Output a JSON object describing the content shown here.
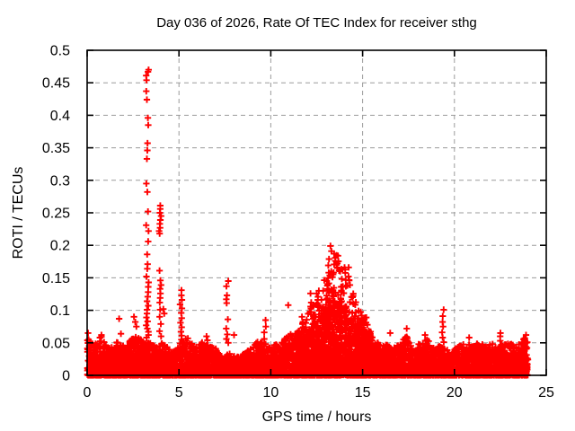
{
  "chart_data": {
    "type": "scatter",
    "title": "Day 036 of 2026, Rate Of TEC Index for receiver sthg",
    "xlabel": "GPS time / hours",
    "ylabel": "ROTI / TECUs",
    "xlim": [
      0,
      25
    ],
    "ylim": [
      0,
      0.5
    ],
    "xticks": [
      0,
      5,
      10,
      15,
      20,
      25
    ],
    "yticks": [
      0,
      0.05,
      0.1,
      0.15,
      0.2,
      0.25,
      0.3,
      0.35,
      0.4,
      0.45,
      0.5
    ],
    "xtick_labels": [
      "0",
      "5",
      "10",
      "15",
      "20",
      "25"
    ],
    "ytick_labels": [
      "0",
      "0.05",
      "0.1",
      "0.15",
      "0.2",
      "0.25",
      "0.3",
      "0.35",
      "0.4",
      "0.45",
      "0.5"
    ],
    "grid": true,
    "grid_style": "dashed",
    "legend": "none",
    "marker": "plus",
    "marker_color": "#ff0000",
    "grid_color": "#9b9b9b",
    "border_color": "#000000",
    "background": "#ffffff",
    "data_hours_range": [
      0,
      24
    ],
    "seed": 20260136,
    "dense_band": {
      "description": "continuous noise carpet of + markers from ROTI 0 up to local envelope",
      "n_core_points": 5200,
      "n_spread_points": 1500,
      "envelope": [
        [
          0,
          0.062
        ],
        [
          0.35,
          0.046
        ],
        [
          0.75,
          0.062
        ],
        [
          1.1,
          0.042
        ],
        [
          1.45,
          0.05
        ],
        [
          1.75,
          0.052
        ],
        [
          2.1,
          0.042
        ],
        [
          2.45,
          0.058
        ],
        [
          2.7,
          0.062
        ],
        [
          2.9,
          0.058
        ],
        [
          3.1,
          0.05
        ],
        [
          3.45,
          0.05
        ],
        [
          3.7,
          0.045
        ],
        [
          4.1,
          0.05
        ],
        [
          4.45,
          0.042
        ],
        [
          4.8,
          0.038
        ],
        [
          5.1,
          0.048
        ],
        [
          5.45,
          0.06
        ],
        [
          5.85,
          0.042
        ],
        [
          6.25,
          0.052
        ],
        [
          6.6,
          0.045
        ],
        [
          7.0,
          0.042
        ],
        [
          7.35,
          0.028
        ],
        [
          7.75,
          0.034
        ],
        [
          8.15,
          0.028
        ],
        [
          8.55,
          0.035
        ],
        [
          8.95,
          0.042
        ],
        [
          9.35,
          0.056
        ],
        [
          9.75,
          0.042
        ],
        [
          10.15,
          0.046
        ],
        [
          10.55,
          0.05
        ],
        [
          10.95,
          0.062
        ],
        [
          11.35,
          0.066
        ],
        [
          11.75,
          0.076
        ],
        [
          12.15,
          0.07
        ],
        [
          12.55,
          0.082
        ],
        [
          12.95,
          0.1
        ],
        [
          13.35,
          0.13
        ],
        [
          13.75,
          0.115
        ],
        [
          14.15,
          0.1
        ],
        [
          14.55,
          0.082
        ],
        [
          14.95,
          0.066
        ],
        [
          15.35,
          0.07
        ],
        [
          15.75,
          0.05
        ],
        [
          16.15,
          0.055
        ],
        [
          16.55,
          0.042
        ],
        [
          16.95,
          0.046
        ],
        [
          17.35,
          0.062
        ],
        [
          17.75,
          0.042
        ],
        [
          18.15,
          0.05
        ],
        [
          18.55,
          0.056
        ],
        [
          18.95,
          0.04
        ],
        [
          19.35,
          0.05
        ],
        [
          19.75,
          0.036
        ],
        [
          20.15,
          0.046
        ],
        [
          20.55,
          0.05
        ],
        [
          20.95,
          0.046
        ],
        [
          21.35,
          0.05
        ],
        [
          21.75,
          0.046
        ],
        [
          22.15,
          0.05
        ],
        [
          22.55,
          0.048
        ],
        [
          22.95,
          0.05
        ],
        [
          23.35,
          0.046
        ],
        [
          23.7,
          0.055
        ],
        [
          24,
          0.06
        ]
      ]
    },
    "mound": {
      "description": "broad elevated scatter region 11.4h-15.5h peaking near 0.2 TECU",
      "n_points": 650,
      "envelope": [
        [
          11.4,
          0.07
        ],
        [
          11.9,
          0.095
        ],
        [
          12.4,
          0.115
        ],
        [
          12.9,
          0.15
        ],
        [
          13.2,
          0.185
        ],
        [
          13.45,
          0.2
        ],
        [
          13.7,
          0.185
        ],
        [
          14.0,
          0.17
        ],
        [
          14.3,
          0.155
        ],
        [
          14.6,
          0.115
        ],
        [
          14.9,
          0.1
        ],
        [
          15.2,
          0.088
        ],
        [
          15.5,
          0.07
        ]
      ]
    },
    "spike_columns": [
      {
        "x": 3.28,
        "values": [
          0.47,
          0.467,
          0.461,
          0.454,
          0.437,
          0.424,
          0.396,
          0.385,
          0.357,
          0.346,
          0.333,
          0.295,
          0.282,
          0.252,
          0.231,
          0.222,
          0.206,
          0.186,
          0.171,
          0.164,
          0.152,
          0.143,
          0.136,
          0.128,
          0.121,
          0.114,
          0.107,
          0.101,
          0.095,
          0.089,
          0.083,
          0.077,
          0.072,
          0.067,
          0.062,
          0.058
        ]
      },
      {
        "x": 3.96,
        "values": [
          0.261,
          0.256,
          0.25,
          0.245,
          0.239,
          0.233,
          0.227,
          0.222,
          0.218,
          0.161,
          0.146,
          0.139,
          0.133,
          0.126,
          0.119,
          0.112,
          0.101,
          0.09,
          0.079,
          0.068,
          0.06
        ]
      },
      {
        "x": 5.12,
        "values": [
          0.131,
          0.123,
          0.116,
          0.109,
          0.103,
          0.096,
          0.088,
          0.081,
          0.074,
          0.067,
          0.061,
          0.055,
          0.049
        ]
      },
      {
        "x": 7.62,
        "values": [
          0.145,
          0.137,
          0.123,
          0.117,
          0.111,
          0.086,
          0.072,
          0.063,
          0.056,
          0.05
        ]
      },
      {
        "x": 9.68,
        "values": [
          0.085,
          0.075,
          0.066,
          0.056,
          0.048
        ]
      },
      {
        "x": 19.35,
        "values": [
          0.101,
          0.091,
          0.082,
          0.075,
          0.066,
          0.058,
          0.051
        ]
      },
      {
        "x": 22.5,
        "values": [
          0.065,
          0.06,
          0.053,
          0.047
        ]
      }
    ],
    "mound_top_points": [
      [
        13.25,
        0.199
      ],
      [
        13.3,
        0.191
      ],
      [
        13.45,
        0.187
      ],
      [
        13.66,
        0.184
      ],
      [
        13.52,
        0.176
      ],
      [
        13.58,
        0.17
      ],
      [
        13.62,
        0.165
      ],
      [
        13.72,
        0.161
      ],
      [
        13.42,
        0.158
      ],
      [
        13.36,
        0.151
      ],
      [
        14.24,
        0.166
      ],
      [
        14.27,
        0.146
      ],
      [
        14.31,
        0.139
      ],
      [
        12.16,
        0.126
      ],
      [
        12.2,
        0.112
      ],
      [
        12.5,
        0.126
      ],
      [
        12.56,
        0.116
      ],
      [
        12.6,
        0.108
      ],
      [
        13.05,
        0.145
      ],
      [
        13.1,
        0.14
      ],
      [
        12.85,
        0.13
      ],
      [
        14.45,
        0.12
      ],
      [
        14.5,
        0.11
      ],
      [
        14.95,
        0.092
      ],
      [
        15.02,
        0.082
      ],
      [
        15.2,
        0.089
      ],
      [
        11.7,
        0.09
      ],
      [
        11.75,
        0.082
      ]
    ],
    "outlier_points": [
      [
        0.78,
        0.062
      ],
      [
        1.74,
        0.087
      ],
      [
        1.84,
        0.064
      ],
      [
        2.47,
        0.056
      ],
      [
        2.55,
        0.09
      ],
      [
        2.62,
        0.082
      ],
      [
        2.68,
        0.075
      ],
      [
        4.15,
        0.102
      ],
      [
        4.2,
        0.095
      ],
      [
        6.5,
        0.06
      ],
      [
        6.55,
        0.054
      ],
      [
        8.0,
        0.062
      ],
      [
        10.95,
        0.108
      ],
      [
        16.5,
        0.065
      ],
      [
        17.4,
        0.072
      ],
      [
        18.4,
        0.062
      ],
      [
        20.8,
        0.058
      ],
      [
        23.9,
        0.062
      ],
      [
        0.05,
        0.065
      ],
      [
        0.08,
        0.055
      ]
    ],
    "layout": {
      "plot_left": 97,
      "plot_right": 608,
      "plot_top": 56,
      "plot_bottom": 418,
      "title_y": 30,
      "xlabel_y": 469,
      "ylabel_x": 25,
      "tick_len": 7,
      "marker_half": 3.6,
      "marker_stroke": 1.9
    }
  }
}
